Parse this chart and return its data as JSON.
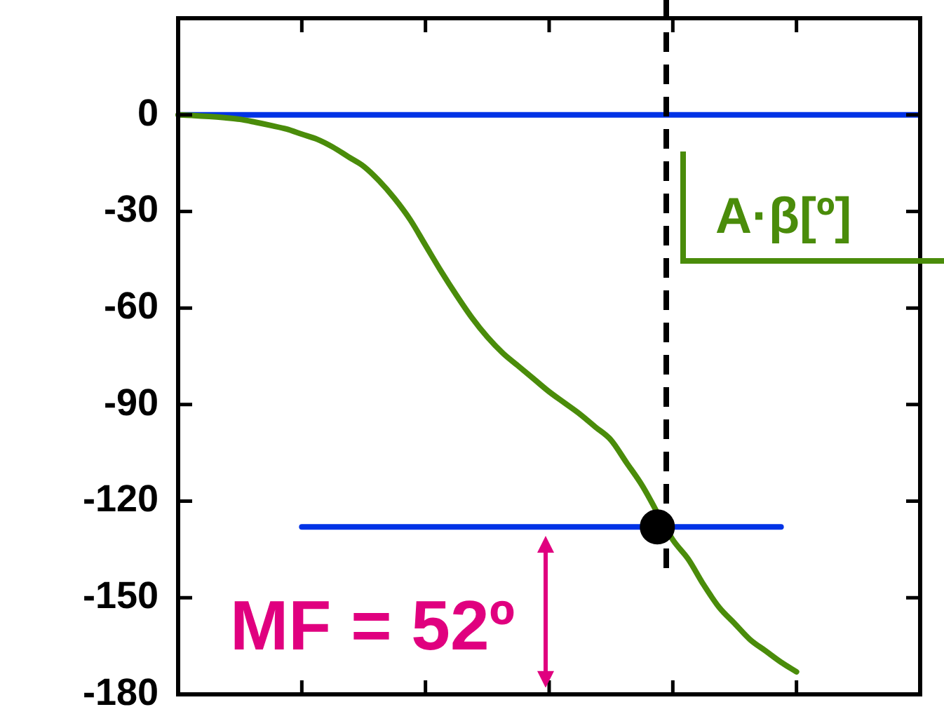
{
  "chart_data": {
    "type": "line",
    "categories": [
      null,
      null,
      null,
      null,
      null,
      null,
      null,
      null,
      null,
      null,
      null,
      null,
      null,
      null,
      null,
      null,
      null,
      null,
      null,
      null,
      null,
      null,
      null,
      null,
      null,
      null,
      null,
      null,
      null,
      null,
      null,
      null,
      null,
      null,
      null,
      null,
      null,
      null,
      null,
      null,
      null,
      null,
      null,
      null,
      null,
      null,
      null,
      null,
      null
    ],
    "ylim": [
      -180,
      30
    ],
    "yticks": [
      0,
      -30,
      -60,
      -90,
      -120,
      -150,
      -180
    ],
    "tick_labels": "y",
    "grid": false,
    "legend": "right",
    "marker": "none",
    "series": [
      {
        "name": "A·β[º]",
        "color": "#4a8c0a",
        "values": [
          0,
          -0.2,
          -0.5,
          -0.9,
          -1.4,
          -2.3,
          -3.3,
          -4.4,
          -6,
          -7.6,
          -10,
          -13,
          -16,
          -20.5,
          -26,
          -32.5,
          -40.5,
          -48.5,
          -56,
          -63,
          -69,
          -74,
          -78,
          -82,
          -86,
          -89.5,
          -93,
          -97,
          -101,
          -108,
          -115,
          null,
          -132,
          -138,
          -146,
          -153,
          -158,
          -163,
          -166.5,
          -170,
          -173,
          null,
          null,
          null,
          null,
          null,
          null,
          null,
          null
        ]
      },
      {
        "type": "line",
        "color": "#0033e6",
        "values": [
          null,
          null,
          null,
          null,
          null,
          null,
          null,
          null,
          -128,
          null,
          null,
          null,
          null,
          null,
          null,
          null,
          null,
          null,
          null,
          null,
          null,
          null,
          null,
          null,
          null,
          null,
          null,
          null,
          null,
          null,
          null,
          null,
          null,
          null,
          null,
          null,
          null,
          null,
          null,
          -128,
          null,
          null,
          null,
          null,
          null,
          null,
          null,
          null,
          null
        ]
      },
      {
        "type": "scatter",
        "marker": "circle",
        "color": "#000000",
        "values": [
          null,
          null,
          null,
          null,
          null,
          null,
          null,
          null,
          null,
          null,
          null,
          null,
          null,
          null,
          null,
          null,
          null,
          null,
          null,
          null,
          null,
          null,
          null,
          null,
          null,
          null,
          null,
          null,
          null,
          null,
          null,
          -128,
          null,
          null,
          null,
          null,
          null,
          null,
          null,
          null,
          null,
          null,
          null,
          null,
          null,
          null,
          null,
          null,
          null
        ]
      }
    ],
    "ref_lines": [
      {
        "axis": "y",
        "value": 0,
        "color": "#0033e6",
        "line_style": "solid"
      }
    ],
    "annotations": [
      "MF = 52º"
    ]
  }
}
